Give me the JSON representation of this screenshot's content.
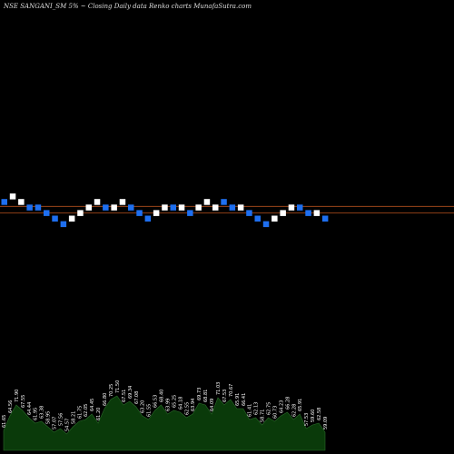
{
  "title": "NSE SANGANI_SM 5% ~  Closing Daily data  Renko  charts MunafaSutra.com",
  "colors": {
    "background": "#000000",
    "up_brick": "#ffffff",
    "down_brick": "#1e6ff0",
    "level_line": "#b5501e",
    "volume_fill": "#0a3a0a",
    "volume_outline": "#2a6a2a"
  },
  "chart_data": {
    "type": "renko",
    "title": "NSE SANGANI_SM 5% ~  Closing Daily data  Renko  charts MunafaSutra.com",
    "bricks": {
      "size_note": "5%",
      "levels": [
        8,
        9,
        8,
        7,
        7,
        6,
        5,
        4,
        5,
        6,
        7,
        8,
        7,
        7,
        8,
        7,
        6,
        5,
        6,
        7,
        7,
        7,
        6,
        7,
        8,
        7,
        8,
        7,
        7,
        6,
        5,
        4,
        5,
        6,
        7,
        7,
        6,
        6,
        5
      ],
      "direction": [
        "down",
        "up",
        "up",
        "down",
        "down",
        "down",
        "down",
        "down",
        "up",
        "up",
        "up",
        "up",
        "down",
        "up",
        "up",
        "down",
        "down",
        "down",
        "up",
        "up",
        "down",
        "up",
        "down",
        "up",
        "up",
        "up",
        "down",
        "down",
        "up",
        "down",
        "down",
        "down",
        "up",
        "up",
        "up",
        "down",
        "down",
        "up",
        "down"
      ]
    },
    "level_lines": [
      7.2,
      6.0
    ],
    "volume_labels": [
      "61.65",
      "64.56",
      "71.90",
      "67.55",
      "64.44",
      "61.95",
      "63.38",
      "58.95",
      "57.07",
      "57.56",
      "54.57",
      "58.21",
      "61.75",
      "62.05",
      "64.45",
      "61.20",
      "66.80",
      "70.25",
      "71.50",
      "67.51",
      "69.34",
      "67.08",
      "63.20",
      "61.55",
      "66.53",
      "68.40",
      "63.99",
      "65.25",
      "64.18",
      "62.55",
      "63.94",
      "69.73",
      "68.81",
      "64.09",
      "71.03",
      "67.53",
      "70.67",
      "65.91",
      "66.41",
      "61.41",
      "62.13",
      "58.71",
      "62.75",
      "60.73",
      "64.23",
      "66.28",
      "62.28",
      "65.91",
      "57.53",
      "59.60",
      "62.58",
      "59.09"
    ],
    "volume_heights": [
      22,
      38,
      50,
      44,
      36,
      30,
      32,
      26,
      20,
      24,
      18,
      26,
      32,
      34,
      40,
      30,
      46,
      56,
      60,
      50,
      54,
      48,
      38,
      34,
      44,
      50,
      40,
      44,
      42,
      36,
      40,
      52,
      50,
      40,
      58,
      50,
      56,
      46,
      46,
      34,
      36,
      28,
      36,
      32,
      38,
      42,
      34,
      40,
      24,
      28,
      30,
      20
    ]
  }
}
